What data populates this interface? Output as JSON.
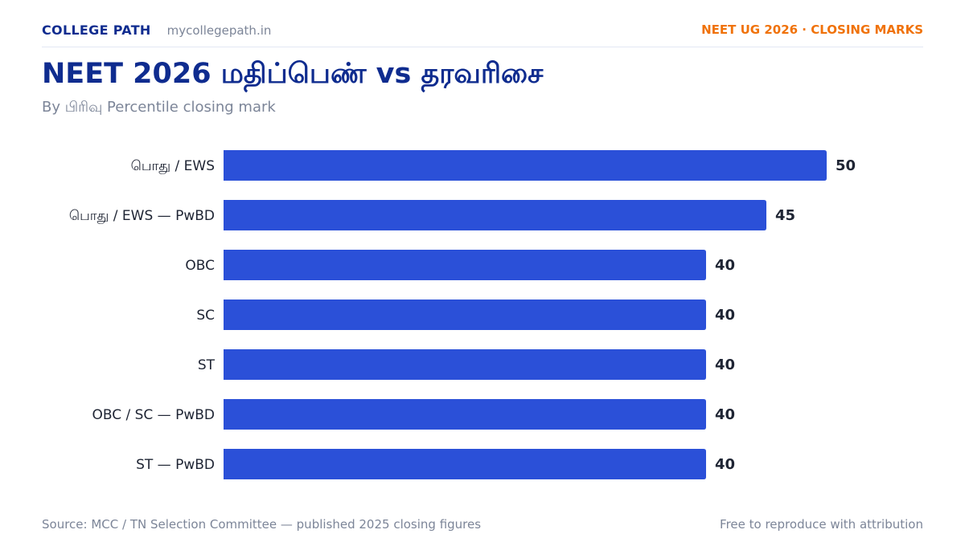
{
  "header": {
    "brand": "COLLEGE PATH",
    "domain": "mycollegepath.in",
    "tag": "NEET UG 2026 · CLOSING MARKS"
  },
  "chart_data": {
    "type": "bar",
    "orientation": "horizontal",
    "title": "NEET 2026 மதிப்பெண் vs தரவரிசை",
    "subtitle": "By பிரிவு Percentile closing mark",
    "categories": [
      "பொது / EWS",
      "பொது / EWS — PwBD",
      "OBC",
      "SC",
      "ST",
      "OBC / SC — PwBD",
      "ST — PwBD"
    ],
    "values": [
      50,
      45,
      40,
      40,
      40,
      40,
      40
    ],
    "xlim": [
      0,
      50
    ],
    "bar_color": "#2b50d8",
    "grid": false,
    "legend": "none"
  },
  "footer": {
    "source": "Source: MCC / TN Selection Committee — published 2025 closing figures",
    "license": "Free to reproduce with attribution"
  },
  "colors": {
    "brand": "#0f2c8f",
    "accent": "#f0720a",
    "bar": "#2b50d8",
    "muted": "#7c8598"
  }
}
